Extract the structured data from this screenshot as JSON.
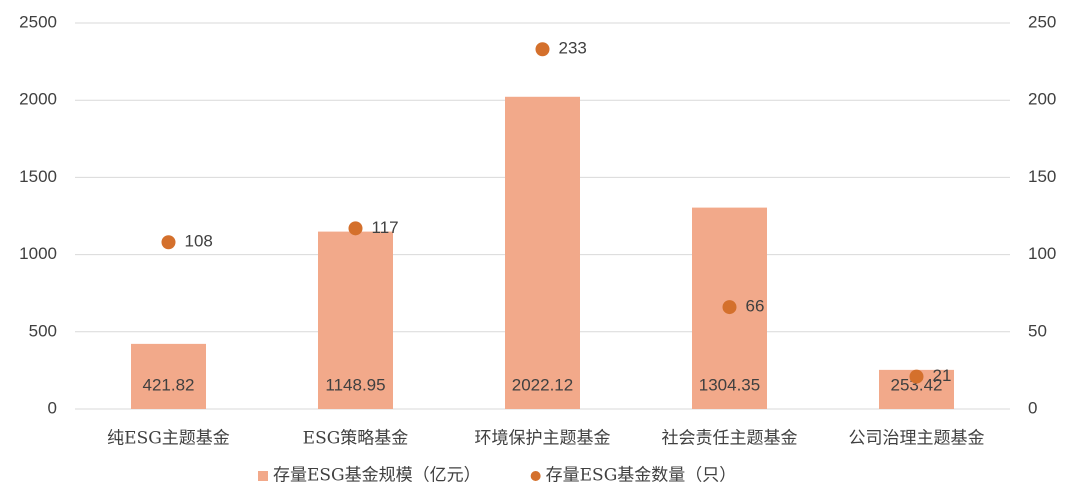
{
  "chart_data": {
    "type": "bar",
    "categories": [
      "纯ESG主题基金",
      "ESG策略基金",
      "环境保护主题基金",
      "社会责任主题基金",
      "公司治理主题基金"
    ],
    "series": [
      {
        "name": "存量ESG基金规模（亿元）",
        "type": "bar",
        "color": "#f2a98a",
        "values": [
          421.82,
          1148.95,
          2022.12,
          1304.35,
          253.42
        ]
      },
      {
        "name": "存量ESG基金数量（只）",
        "type": "scatter",
        "axis": "y2",
        "color": "#d4702c",
        "values": [
          108,
          117,
          233,
          66,
          21
        ]
      }
    ],
    "ylim": [
      0,
      2500
    ],
    "yticks": [
      0,
      500,
      1000,
      1500,
      2000,
      2500
    ],
    "y2lim": [
      0,
      250
    ],
    "y2ticks": [
      0,
      50,
      100,
      150,
      200,
      250
    ],
    "grid": true,
    "legend": "bottom"
  }
}
